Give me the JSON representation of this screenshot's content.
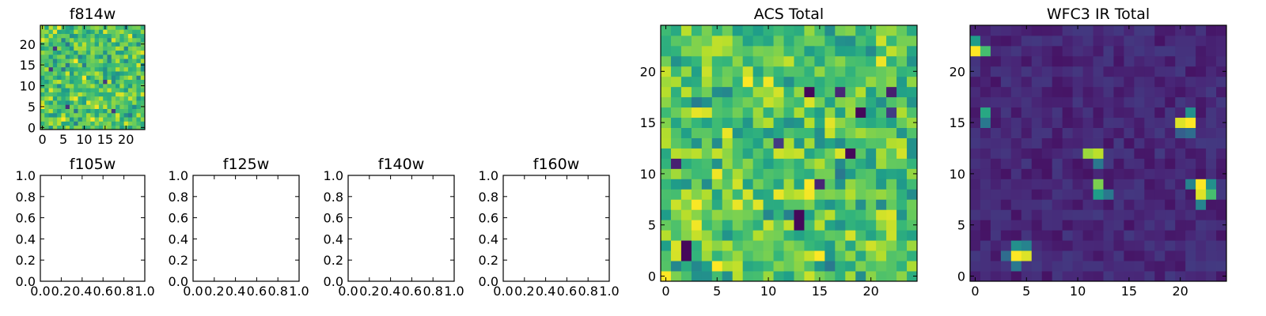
{
  "chart_data": [
    {
      "type": "heatmap",
      "title": "f814w",
      "grid_size": 25,
      "xlim": [
        0,
        24
      ],
      "ylim": [
        0,
        24
      ],
      "xticks": [
        "0",
        "5",
        "10",
        "15",
        "20"
      ],
      "yticks": [
        "0",
        "5",
        "10",
        "15",
        "20"
      ],
      "colormap": "viridis",
      "values_note": "25x25 near-uniform noise, mostly mid-green/yellow with a few dark pixels"
    },
    {
      "type": "empty",
      "title": "f105w",
      "xlim": [
        0,
        1
      ],
      "ylim": [
        0,
        1
      ],
      "xticks": [
        "0.0",
        "0.2",
        "0.4",
        "0.6",
        "0.8",
        "1.0"
      ],
      "yticks": [
        "0.0",
        "0.2",
        "0.4",
        "0.6",
        "0.8",
        "1.0"
      ]
    },
    {
      "type": "empty",
      "title": "f125w",
      "xlim": [
        0,
        1
      ],
      "ylim": [
        0,
        1
      ],
      "xticks": [
        "0.0",
        "0.2",
        "0.4",
        "0.6",
        "0.8",
        "1.0"
      ],
      "yticks": [
        "0.0",
        "0.2",
        "0.4",
        "0.6",
        "0.8",
        "1.0"
      ]
    },
    {
      "type": "empty",
      "title": "f140w",
      "xlim": [
        0,
        1
      ],
      "ylim": [
        0,
        1
      ],
      "xticks": [
        "0.0",
        "0.2",
        "0.4",
        "0.6",
        "0.8",
        "1.0"
      ],
      "yticks": [
        "0.0",
        "0.2",
        "0.4",
        "0.6",
        "0.8",
        "1.0"
      ]
    },
    {
      "type": "empty",
      "title": "f160w",
      "xlim": [
        0,
        1
      ],
      "ylim": [
        0,
        1
      ],
      "xticks": [
        "0.0",
        "0.2",
        "0.4",
        "0.6",
        "0.8",
        "1.0"
      ],
      "yticks": [
        "0.0",
        "0.2",
        "0.4",
        "0.6",
        "0.8",
        "1.0"
      ]
    },
    {
      "type": "heatmap",
      "title": "ACS Total",
      "grid_size": 25,
      "xlim": [
        0,
        24
      ],
      "ylim": [
        0,
        24
      ],
      "xticks": [
        "0",
        "5",
        "10",
        "15",
        "20"
      ],
      "yticks": [
        "0",
        "5",
        "10",
        "15",
        "20"
      ],
      "colormap": "viridis",
      "dark_pixels": [
        [
          18,
          14
        ],
        [
          16,
          19
        ],
        [
          12,
          18
        ],
        [
          6,
          13
        ],
        [
          5,
          13
        ],
        [
          3,
          2
        ],
        [
          2,
          2
        ]
      ]
    },
    {
      "type": "heatmap",
      "title": "WFC3 IR Total",
      "grid_size": 25,
      "xlim": [
        0,
        24
      ],
      "ylim": [
        0,
        24
      ],
      "xticks": [
        "0",
        "5",
        "10",
        "15",
        "20"
      ],
      "yticks": [
        "0",
        "5",
        "10",
        "15",
        "20"
      ],
      "colormap": "viridis",
      "background_level": 0.05,
      "hot_pixels": [
        [
          22,
          0,
          1.0
        ],
        [
          23,
          0,
          0.55
        ],
        [
          22,
          1,
          0.7
        ],
        [
          16,
          1,
          0.6
        ],
        [
          15,
          1,
          0.4
        ],
        [
          15,
          21,
          1.0
        ],
        [
          15,
          20,
          0.95
        ],
        [
          16,
          21,
          0.5
        ],
        [
          14,
          21,
          0.35
        ],
        [
          14,
          20,
          0.3
        ],
        [
          12,
          11,
          0.85
        ],
        [
          12,
          12,
          0.9
        ],
        [
          11,
          12,
          0.4
        ],
        [
          9,
          12,
          0.8
        ],
        [
          8,
          12,
          0.55
        ],
        [
          8,
          13,
          0.4
        ],
        [
          9,
          22,
          1.0
        ],
        [
          8,
          22,
          0.95
        ],
        [
          8,
          23,
          0.7
        ],
        [
          9,
          21,
          0.45
        ],
        [
          7,
          22,
          0.45
        ],
        [
          9,
          23,
          0.5
        ],
        [
          2,
          4,
          1.0
        ],
        [
          2,
          5,
          0.95
        ],
        [
          3,
          4,
          0.5
        ],
        [
          3,
          5,
          0.45
        ],
        [
          1,
          4,
          0.4
        ],
        [
          2,
          3,
          0.35
        ]
      ]
    }
  ]
}
